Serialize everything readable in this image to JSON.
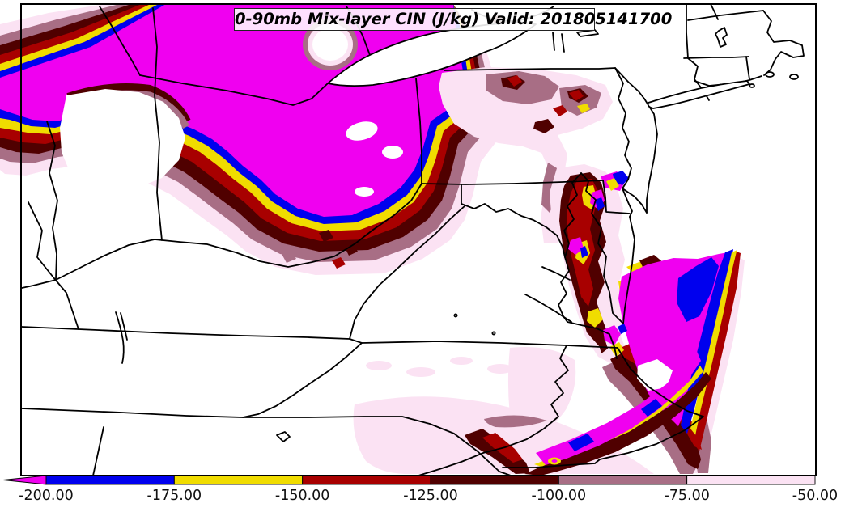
{
  "title": {
    "text": "0-90mb Mix-layer CIN (J/kg) Valid: 201805141700"
  },
  "colorbar": {
    "tick_labels": [
      "-200.00",
      "-175.00",
      "-150.00",
      "-125.00",
      "-100.00",
      "-75.00",
      "-50.00"
    ],
    "tick_values": [
      -200,
      -175,
      -150,
      -125,
      -100,
      -75,
      -50
    ],
    "segment_colors": [
      "#0000EE",
      "#F0DC00",
      "#A80000",
      "#500000",
      "#A86E85",
      "#FBE2F3"
    ],
    "underflow_color": "#F000F0",
    "units": "J/kg"
  },
  "colors": {
    "magenta": "#F000F0",
    "blue": "#0000EE",
    "yellow": "#F0DC00",
    "firebrick": "#A80000",
    "maroon": "#500000",
    "rosybrown": "#A86E85",
    "palepink": "#FBE2F3",
    "water_land": "#FFFFFF",
    "boundary": "#000000"
  }
}
